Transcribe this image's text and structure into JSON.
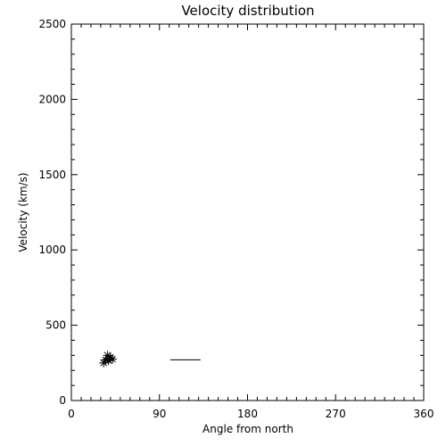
{
  "chart_data": {
    "type": "scatter",
    "title": "Velocity distribution",
    "xlabel": "Angle from north",
    "ylabel": "Velocity (km/s)",
    "xlim": [
      0,
      360
    ],
    "ylim": [
      0,
      2500
    ],
    "xticks": [
      0,
      90,
      180,
      270,
      360
    ],
    "yticks": [
      0,
      500,
      1000,
      1500,
      2000,
      2500
    ],
    "x_minor_step": 10,
    "y_minor_step": 100,
    "grid": false,
    "series": [
      {
        "marker": "asterisk",
        "points": [
          {
            "x": 33,
            "y": 250
          },
          {
            "x": 35,
            "y": 270
          },
          {
            "x": 37,
            "y": 300
          },
          {
            "x": 38,
            "y": 265
          },
          {
            "x": 40,
            "y": 285
          },
          {
            "x": 42,
            "y": 275
          }
        ]
      },
      {
        "marker": "line",
        "segments": [
          {
            "x1": 101,
            "x2": 132,
            "y": 270
          }
        ]
      }
    ]
  }
}
